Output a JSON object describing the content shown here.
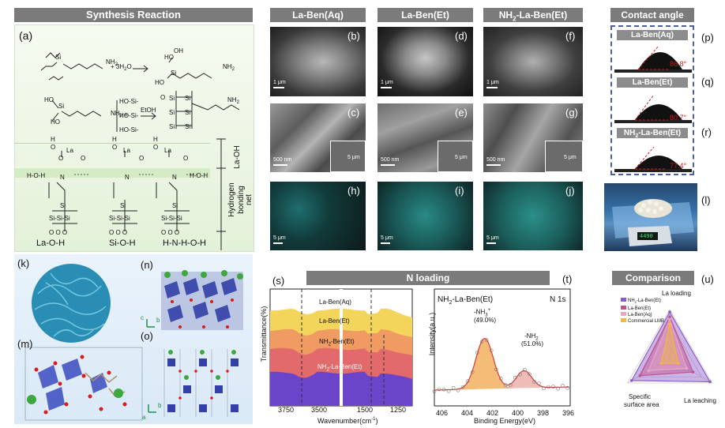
{
  "headers": {
    "synthesis": "Synthesis Reaction",
    "col1": "La-Ben(Aq)",
    "col2": "La-Ben(Et)",
    "col3_prefix": "NH",
    "col3_sub": "2",
    "col3_suffix": "-La-Ben(Et)",
    "contact_angle": "Contact angle",
    "n_loading": "N loading",
    "comparison": "Comparison"
  },
  "panel_labels": {
    "a": "(a)",
    "b": "(b)",
    "c": "(c)",
    "d": "(d)",
    "e": "(e)",
    "f": "(f)",
    "g": "(g)",
    "h": "(h)",
    "i": "(i)",
    "j": "(j)",
    "k": "(k)",
    "l": "(l)",
    "m": "(m)",
    "n": "(n)",
    "o": "(o)",
    "p": "(p)",
    "q": "(q)",
    "r": "(r)",
    "s": "(s)",
    "t": "(t)",
    "u": "(u)"
  },
  "synthesis": {
    "water": "3H",
    "water_sub": "2",
    "water_o": "O",
    "etoh": "EtOH",
    "nh2": "NH",
    "la_oh": "La-OH",
    "hydrogen": "Hydrogen",
    "bonding": "bonding",
    "net": "net",
    "hoh": "H-O-H",
    "bottom_labels": [
      "La-O-H",
      "Si-O-H",
      "H-N-H-O-H"
    ]
  },
  "scale_bars": {
    "row1": "1 μm",
    "row2": "500 nm",
    "inset": "5 μm",
    "row3": "5 μm"
  },
  "contact_angle": {
    "samples": [
      {
        "name": "La-Ben(Aq)",
        "angle": "86.8°"
      },
      {
        "name": "La-Ben(Et)",
        "angle": "80.7°"
      },
      {
        "name_prefix": "NH",
        "name_sub": "2",
        "name_suffix": "-La-Ben(Et)",
        "angle": "77.4°"
      }
    ]
  },
  "scale_display": "4490",
  "crystal": {
    "axis_b": "b",
    "axis_c": "c",
    "axis_a": "a"
  },
  "chart_data": [
    {
      "type": "line",
      "panel": "(s)",
      "xlabel": "Wavenumber(cm",
      "xlabel_sup": "-1",
      "xlabel_end": ")",
      "ylabel": "Transmittance(%)",
      "xticks": [
        "3750",
        "3500",
        "1500",
        "1250"
      ],
      "series": [
        {
          "name": "La-Ben(Aq)",
          "color": "#f3d55c"
        },
        {
          "name": "La-Ben(Et)",
          "color": "#ef9b62"
        },
        {
          "name": "NH2-Ben(Et)",
          "color": "#e2696c"
        },
        {
          "name": "NH2-La-Ben(Et)",
          "color": "#6b45c9"
        }
      ]
    },
    {
      "type": "line",
      "panel": "(t)",
      "title_prefix": "NH",
      "title_sub": "2",
      "title_suffix": "-La-Ben(Et)",
      "region": "N 1s",
      "xlabel": "Binding Energy(eV)",
      "ylabel": "Intensity(a.u.)",
      "xticks": [
        "406",
        "404",
        "402",
        "400",
        "398",
        "396"
      ],
      "xlim": [
        406,
        396
      ],
      "peaks": [
        {
          "label": "-NH",
          "label_sup": "3",
          "label_end": "+",
          "percent": "(49.0%)",
          "center": 402.3,
          "color": "#f2a54a"
        },
        {
          "label": "-NH",
          "label_sub": "2",
          "percent": "(51.0%)",
          "center": 399.4,
          "color": "#e9a7a0"
        }
      ]
    },
    {
      "type": "radar",
      "panel": "(u)",
      "axes": [
        "La loading",
        "La leaching",
        "Specific surface area"
      ],
      "axis_special": [
        "Specific",
        "surface area"
      ],
      "legend": [
        "NH2-La-Ben(Et)",
        "La-Ben(Et)",
        "La-Ben(Aq)",
        "Commercial LMB"
      ],
      "legend_colors": [
        "#8b5cc8",
        "#c0528f",
        "#e9a7c4",
        "#f2b73e"
      ],
      "series": [
        {
          "name": "NH2-La-Ben(Et)",
          "values": [
            0.95,
            0.95,
            0.9
          ]
        },
        {
          "name": "La-Ben(Et)",
          "values": [
            0.85,
            0.55,
            0.7
          ]
        },
        {
          "name": "La-Ben(Aq)",
          "values": [
            0.8,
            0.4,
            0.5
          ]
        },
        {
          "name": "Commercial LMB",
          "values": [
            0.7,
            0.2,
            0.2
          ]
        }
      ]
    }
  ]
}
